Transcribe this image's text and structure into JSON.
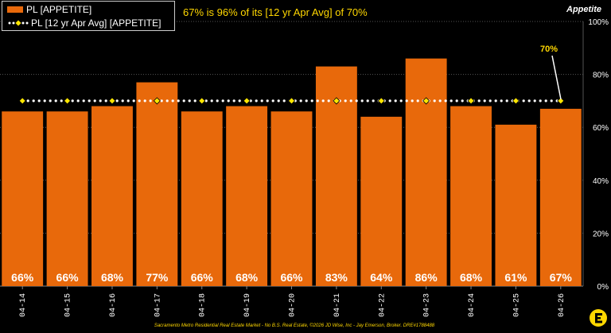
{
  "legend": {
    "bar_label": "PL [APPETITE]",
    "line_label": "PL [12 yr Apr Avg] [APPETITE]"
  },
  "headline": "67% is 96% of its [12 yr Apr Avg] of 70%",
  "axis_title": "Appetite",
  "avg_callout": "70%",
  "footer": "Sacramento Metro Residential Real Estate Market - No B.S. Real Estate, ©2026 JD Wise, Inc - Jay Emerson, Broker. DRE#1788488",
  "colors": {
    "bar": "#E8690B",
    "avg_line": "#FFFFFF",
    "avg_marker": "#FFE600",
    "accent_text": "#FFD700",
    "background": "#000000"
  },
  "logo_icon": "e-logo-icon",
  "chart_data": {
    "type": "bar",
    "categories": [
      "04-14",
      "04-15",
      "04-16",
      "04-17",
      "04-18",
      "04-19",
      "04-20",
      "04-21",
      "04-22",
      "04-23",
      "04-24",
      "04-25",
      "04-26"
    ],
    "series": [
      {
        "name": "PL [APPETITE]",
        "type": "bar",
        "values": [
          66,
          66,
          68,
          77,
          66,
          68,
          66,
          83,
          64,
          86,
          68,
          61,
          67
        ],
        "labels": [
          "66%",
          "66%",
          "68%",
          "77%",
          "66%",
          "68%",
          "66%",
          "83%",
          "64%",
          "86%",
          "68%",
          "61%",
          "67%"
        ]
      },
      {
        "name": "PL [12 yr Apr Avg] [APPETITE]",
        "type": "line",
        "values": [
          70,
          70,
          70,
          70,
          70,
          70,
          70,
          70,
          70,
          70,
          70,
          70,
          70
        ]
      }
    ],
    "ylim": [
      0,
      100
    ],
    "yticks": [
      "0%",
      "20%",
      "40%",
      "60%",
      "80%",
      "100%"
    ],
    "ytick_values": [
      0,
      20,
      40,
      60,
      80,
      100
    ],
    "grid": true,
    "legend_position": "top-left"
  }
}
